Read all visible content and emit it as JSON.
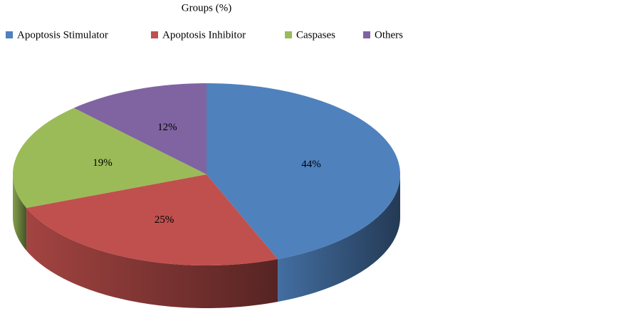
{
  "chart_data": {
    "type": "pie",
    "title": "Groups (%)",
    "categories": [
      "Apoptosis Stimulator",
      "Apoptosis Inhibitor",
      "Caspases",
      "Others"
    ],
    "values": [
      44,
      25,
      19,
      12
    ],
    "value_labels": [
      "44%",
      "25%",
      "19%",
      "12%"
    ],
    "colors": [
      "#4f81bd",
      "#c0504d",
      "#9bbb59",
      "#8064a2"
    ],
    "three_d": true
  }
}
